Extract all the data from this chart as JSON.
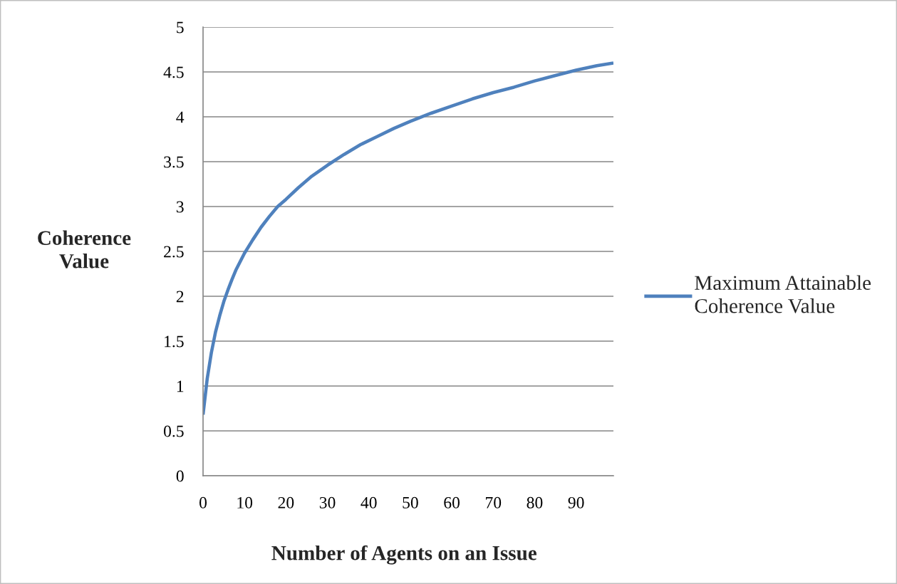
{
  "chart_data": {
    "type": "line",
    "xlabel": "Number of Agents on an Issue",
    "ylabel": "Coherence Value",
    "x": [
      0,
      1,
      2,
      3,
      4,
      5,
      6,
      7,
      8,
      10,
      12,
      14,
      16,
      18,
      20,
      23,
      26,
      30,
      34,
      38,
      42,
      46,
      50,
      55,
      60,
      65,
      70,
      75,
      80,
      85,
      90,
      95,
      99
    ],
    "series": [
      {
        "name": "Maximum Attainable Coherence Value",
        "color": "#4f81bd",
        "values": [
          0.68,
          1.08,
          1.37,
          1.6,
          1.78,
          1.94,
          2.07,
          2.19,
          2.3,
          2.48,
          2.63,
          2.77,
          2.89,
          3.0,
          3.08,
          3.21,
          3.33,
          3.46,
          3.58,
          3.69,
          3.78,
          3.87,
          3.95,
          4.04,
          4.12,
          4.2,
          4.27,
          4.33,
          4.4,
          4.46,
          4.52,
          4.57,
          4.6
        ]
      }
    ],
    "xlim": [
      0,
      99
    ],
    "xticks": [
      0,
      10,
      20,
      30,
      40,
      50,
      60,
      70,
      80,
      90
    ],
    "ylim": [
      0,
      5
    ],
    "yticks": [
      0,
      0.5,
      1,
      1.5,
      2,
      2.5,
      3,
      3.5,
      4,
      4.5,
      5
    ],
    "grid": "y",
    "legend": "right"
  }
}
